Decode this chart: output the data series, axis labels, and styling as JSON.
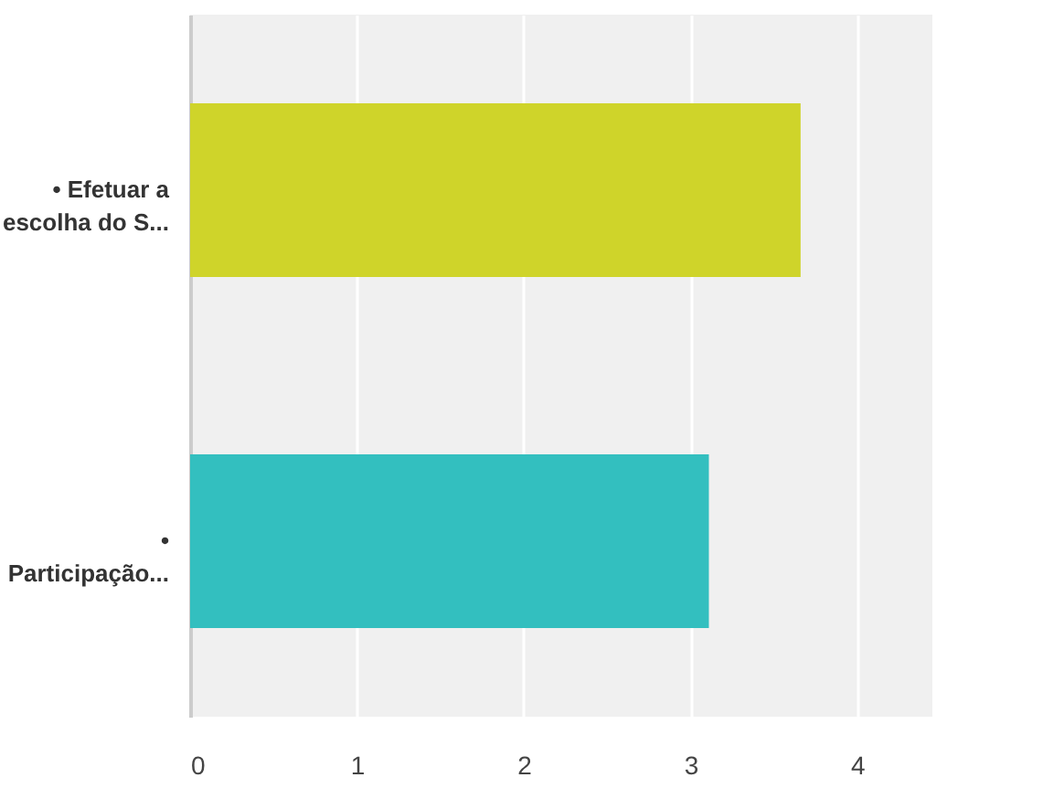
{
  "chart_data": {
    "type": "bar",
    "orientation": "horizontal",
    "categories": [
      "• Efetuar a\nescolha do S...",
      "•\nParticipação..."
    ],
    "values": [
      3.66,
      3.11
    ],
    "colors": [
      "#cfd42a",
      "#33bfbf"
    ],
    "xlim": [
      0,
      4.45
    ],
    "xticks": [
      0,
      1,
      2,
      3,
      4
    ],
    "grid": "x"
  }
}
